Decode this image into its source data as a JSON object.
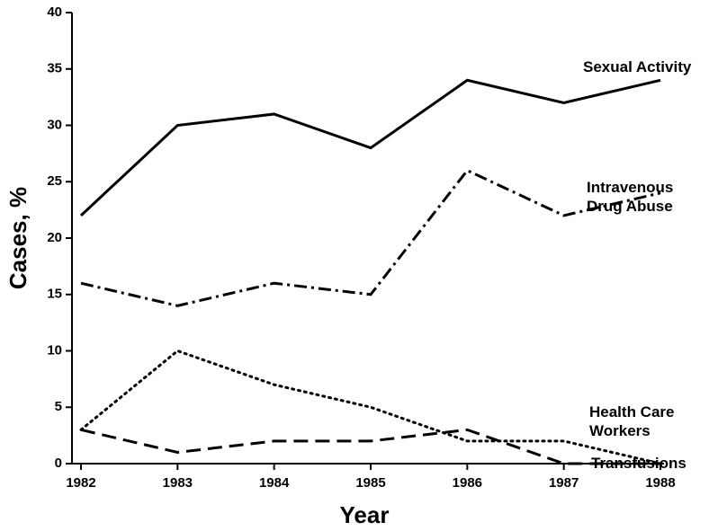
{
  "chart_data": {
    "type": "line",
    "x": [
      1982,
      1983,
      1984,
      1985,
      1986,
      1987,
      1988
    ],
    "xlim": [
      1982,
      1988
    ],
    "xticks": [
      1982,
      1983,
      1984,
      1985,
      1986,
      1987,
      1988
    ],
    "ylim": [
      0,
      40
    ],
    "yticks": [
      0,
      5,
      10,
      15,
      20,
      25,
      30,
      35,
      40
    ],
    "xlabel": "Year",
    "ylabel": "Cases, %",
    "grid": false,
    "series": [
      {
        "name": "Sexual Activity",
        "color": "#000000",
        "style": "solid",
        "values": [
          22,
          30,
          31,
          28,
          34,
          32,
          34
        ]
      },
      {
        "name": "Intravenous Drug Abuse",
        "color": "#000000",
        "style": "dashdot",
        "values": [
          16,
          14,
          16,
          15,
          26,
          22,
          24
        ]
      },
      {
        "name": "Health Care Workers",
        "color": "#000000",
        "style": "dotted",
        "values": [
          3,
          10,
          7,
          5,
          2,
          2,
          0
        ]
      },
      {
        "name": "Transfusions",
        "color": "#000000",
        "style": "dashed",
        "values": [
          3,
          1,
          2,
          2,
          3,
          0,
          0
        ]
      }
    ]
  }
}
